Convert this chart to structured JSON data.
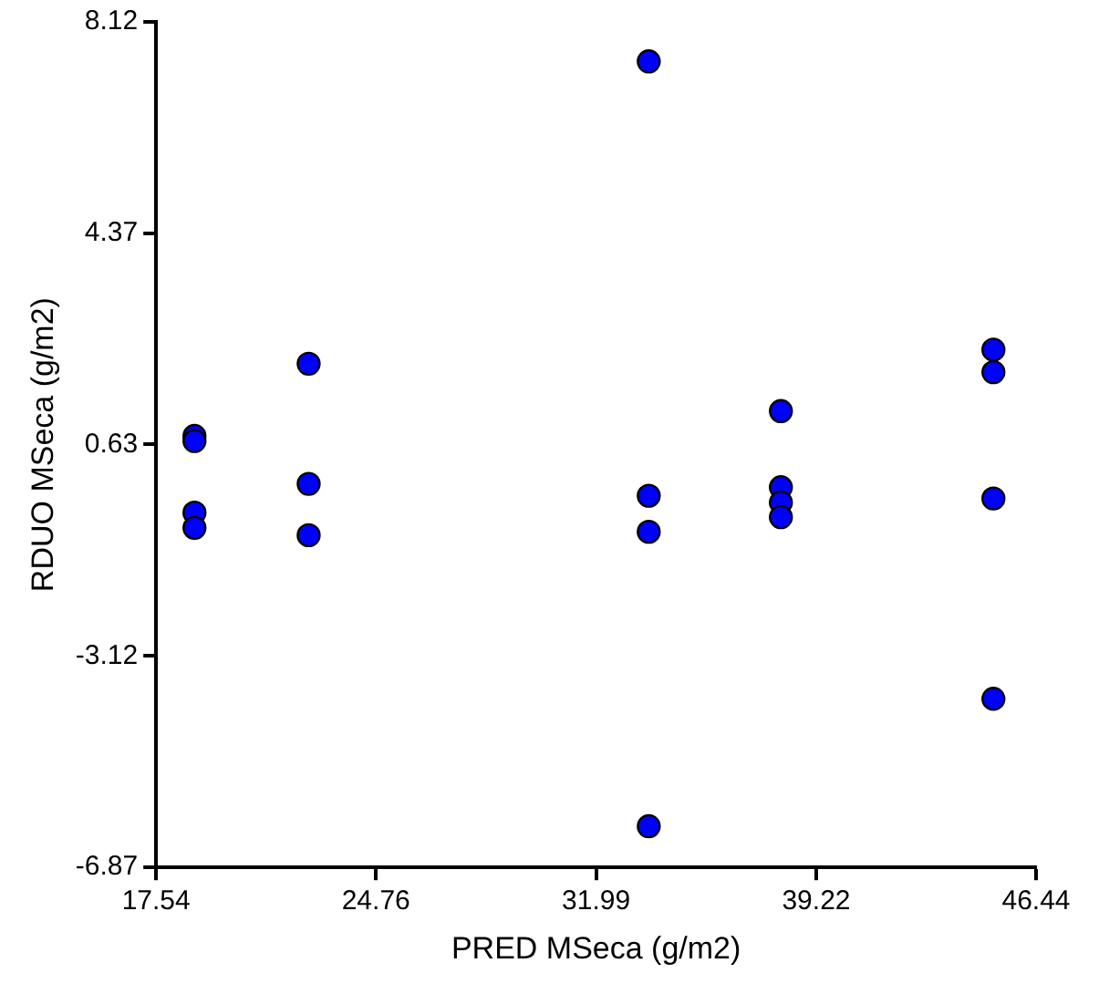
{
  "chart_data": {
    "type": "scatter",
    "xlabel": "PRED MSeca (g/m2)",
    "ylabel": "RDUO MSeca (g/m2)",
    "xlim": [
      17.54,
      46.44
    ],
    "xticks": [
      17.54,
      24.76,
      31.99,
      39.22,
      46.44
    ],
    "ylim": [
      -6.87,
      8.12
    ],
    "yticks": [
      -6.87,
      -3.12,
      0.63,
      4.37,
      8.12
    ],
    "grid": false,
    "legend": false,
    "marker": "circle",
    "series": [
      {
        "color": "#0000ff",
        "x": [
          18.8,
          18.8,
          18.8,
          18.8,
          22.55,
          22.55,
          22.55,
          33.72,
          33.72,
          33.72,
          33.72,
          38.06,
          38.06,
          38.06,
          38.06,
          45.04,
          45.04,
          45.04,
          45.04
        ],
        "values": [
          0.78,
          0.69,
          -0.58,
          -0.85,
          2.06,
          -0.07,
          -0.98,
          7.42,
          -0.28,
          -0.92,
          -6.14,
          1.22,
          -0.13,
          -0.4,
          -0.66,
          2.31,
          1.91,
          -0.33,
          -3.88
        ]
      }
    ]
  }
}
